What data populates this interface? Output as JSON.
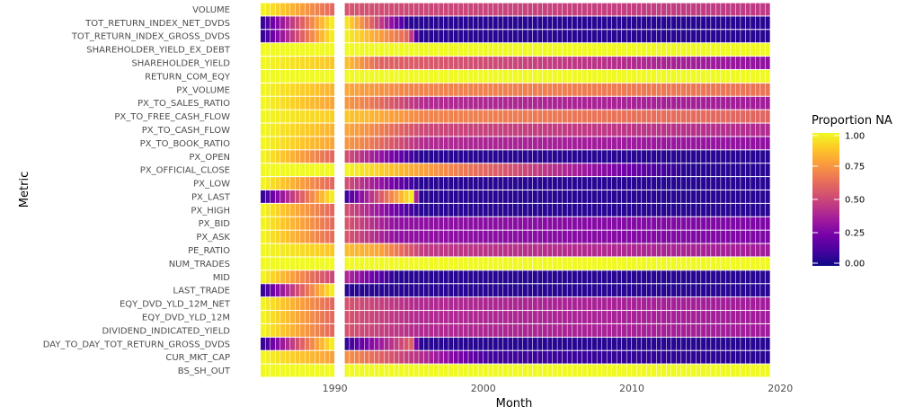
{
  "chart_data": {
    "type": "heatmap",
    "xlabel": "Month",
    "ylabel": "Metric",
    "xlim": [
      1985.0,
      2019.2
    ],
    "x_ticks": [
      "1990",
      "2000",
      "2010",
      "2020"
    ],
    "x_tick_values": [
      1990,
      2000,
      2010,
      2020
    ],
    "legend": {
      "title": "Proportion NA",
      "ticks": [
        "1.00",
        "0.75",
        "0.50",
        "0.25",
        "0.00"
      ],
      "tick_values": [
        1.0,
        0.75,
        0.5,
        0.25,
        0.0
      ],
      "colors": [
        "#0d0887",
        "#46039f",
        "#7201a8",
        "#9c179e",
        "#bd3786",
        "#d8576b",
        "#ed7953",
        "#fb9f3a",
        "#fdca26",
        "#f0f921"
      ],
      "placement": "right"
    },
    "gap": [
      1990.0,
      1990.6
    ],
    "metrics": [
      {
        "name": "VOLUME",
        "segments": [
          [
            1985.0,
            1.0
          ],
          [
            1990.6,
            0.55
          ],
          [
            1995.6,
            0.5
          ],
          [
            2019.2,
            0.45
          ]
        ]
      },
      {
        "name": "TOT_RETURN_INDEX_NET_DVDS",
        "segments": [
          [
            1985.0,
            0.05
          ],
          [
            1990.0,
            1.0
          ],
          [
            1990.6,
            1.0
          ],
          [
            1995.0,
            0.05
          ],
          [
            2019.2,
            0.05
          ]
        ]
      },
      {
        "name": "TOT_RETURN_INDEX_GROSS_DVDS",
        "segments": [
          [
            1985.0,
            0.05
          ],
          [
            1990.0,
            1.0
          ],
          [
            1990.6,
            1.0
          ],
          [
            1995.0,
            0.6
          ],
          [
            1995.6,
            0.05
          ],
          [
            2019.2,
            0.05
          ]
        ]
      },
      {
        "name": "SHAREHOLDER_YIELD_EX_DEBT",
        "segments": [
          [
            1985.0,
            1.0
          ],
          [
            2019.2,
            1.0
          ]
        ]
      },
      {
        "name": "SHAREHOLDER_YIELD",
        "segments": [
          [
            1985.0,
            1.0
          ],
          [
            1991.0,
            0.85
          ],
          [
            1993.0,
            0.6
          ],
          [
            2019.2,
            0.3
          ]
        ]
      },
      {
        "name": "RETURN_COM_EQY",
        "segments": [
          [
            1985.0,
            1.0
          ],
          [
            2019.2,
            1.0
          ]
        ]
      },
      {
        "name": "PX_VOLUME",
        "segments": [
          [
            1985.0,
            1.0
          ],
          [
            1990.6,
            0.8
          ],
          [
            1995.0,
            0.7
          ],
          [
            2019.2,
            0.65
          ]
        ]
      },
      {
        "name": "PX_TO_SALES_RATIO",
        "segments": [
          [
            1985.0,
            1.0
          ],
          [
            1992.0,
            0.7
          ],
          [
            1996.0,
            0.4
          ],
          [
            2019.2,
            0.35
          ]
        ]
      },
      {
        "name": "PX_TO_FREE_CASH_FLOW",
        "segments": [
          [
            1985.0,
            1.0
          ],
          [
            1992.0,
            0.85
          ],
          [
            1996.0,
            0.7
          ],
          [
            2019.2,
            0.6
          ]
        ]
      },
      {
        "name": "PX_TO_CASH_FLOW",
        "segments": [
          [
            1985.0,
            1.0
          ],
          [
            1992.0,
            0.75
          ],
          [
            1996.0,
            0.5
          ],
          [
            2019.2,
            0.4
          ]
        ]
      },
      {
        "name": "PX_TO_BOOK_RATIO",
        "segments": [
          [
            1985.0,
            1.0
          ],
          [
            1992.0,
            0.7
          ],
          [
            1996.0,
            0.4
          ],
          [
            2019.2,
            0.3
          ]
        ]
      },
      {
        "name": "PX_OPEN",
        "segments": [
          [
            1985.0,
            1.0
          ],
          [
            1990.6,
            0.55
          ],
          [
            1995.8,
            0.05
          ],
          [
            2019.2,
            0.05
          ]
        ]
      },
      {
        "name": "PX_OFFICIAL_CLOSE",
        "segments": [
          [
            1985.0,
            1.0
          ],
          [
            1990.6,
            1.0
          ],
          [
            2013.7,
            0.05
          ],
          [
            2019.2,
            0.05
          ]
        ]
      },
      {
        "name": "PX_LOW",
        "segments": [
          [
            1985.0,
            1.0
          ],
          [
            1990.6,
            0.55
          ],
          [
            1995.8,
            0.05
          ],
          [
            2019.2,
            0.05
          ]
        ]
      },
      {
        "name": "PX_LAST",
        "segments": [
          [
            1985.0,
            0.05
          ],
          [
            1990.0,
            1.0
          ],
          [
            1990.6,
            0.05
          ],
          [
            1995.3,
            1.0
          ],
          [
            1995.6,
            0.05
          ],
          [
            2019.2,
            0.05
          ]
        ]
      },
      {
        "name": "PX_HIGH",
        "segments": [
          [
            1985.0,
            1.0
          ],
          [
            1990.6,
            0.55
          ],
          [
            1995.8,
            0.05
          ],
          [
            2019.2,
            0.05
          ]
        ]
      },
      {
        "name": "PX_BID",
        "segments": [
          [
            1985.0,
            1.0
          ],
          [
            1994.1,
            0.3
          ],
          [
            2019.2,
            0.25
          ]
        ]
      },
      {
        "name": "PX_ASK",
        "segments": [
          [
            1985.0,
            1.0
          ],
          [
            1994.1,
            0.3
          ],
          [
            2019.2,
            0.25
          ]
        ]
      },
      {
        "name": "PE_RATIO",
        "segments": [
          [
            1985.0,
            1.0
          ],
          [
            1993.0,
            0.8
          ],
          [
            1996.0,
            0.45
          ],
          [
            2019.2,
            0.35
          ]
        ]
      },
      {
        "name": "NUM_TRADES",
        "segments": [
          [
            1985.0,
            1.0
          ],
          [
            2019.2,
            1.0
          ]
        ]
      },
      {
        "name": "MID",
        "segments": [
          [
            1985.0,
            1.0
          ],
          [
            1994.1,
            0.05
          ],
          [
            2019.2,
            0.05
          ]
        ]
      },
      {
        "name": "LAST_TRADE",
        "segments": [
          [
            1985.0,
            0.05
          ],
          [
            1990.0,
            1.0
          ],
          [
            1990.6,
            0.05
          ],
          [
            1995.6,
            0.05
          ],
          [
            2019.2,
            0.05
          ]
        ]
      },
      {
        "name": "EQY_DVD_YLD_12M_NET",
        "segments": [
          [
            1985.0,
            1.0
          ],
          [
            1990.6,
            0.55
          ],
          [
            1995.6,
            0.4
          ],
          [
            2019.2,
            0.35
          ]
        ]
      },
      {
        "name": "EQY_DVD_YLD_12M",
        "segments": [
          [
            1985.0,
            1.0
          ],
          [
            1990.6,
            0.55
          ],
          [
            1995.6,
            0.4
          ],
          [
            2019.2,
            0.35
          ]
        ]
      },
      {
        "name": "DIVIDEND_INDICATED_YIELD",
        "segments": [
          [
            1985.0,
            1.0
          ],
          [
            1990.6,
            0.55
          ],
          [
            1995.6,
            0.4
          ],
          [
            2019.2,
            0.35
          ]
        ]
      },
      {
        "name": "DAY_TO_DAY_TOT_RETURN_GROSS_DVDS",
        "segments": [
          [
            1985.0,
            0.05
          ],
          [
            1990.0,
            1.0
          ],
          [
            1990.6,
            0.05
          ],
          [
            1995.3,
            0.6
          ],
          [
            1995.6,
            0.05
          ],
          [
            2019.2,
            0.05
          ]
        ]
      },
      {
        "name": "CUR_MKT_CAP",
        "segments": [
          [
            1985.0,
            1.0
          ],
          [
            1991.5,
            0.7
          ],
          [
            2000.5,
            0.1
          ],
          [
            2019.2,
            0.05
          ]
        ]
      },
      {
        "name": "BS_SH_OUT",
        "segments": [
          [
            1985.0,
            1.0
          ],
          [
            2019.2,
            1.0
          ]
        ]
      }
    ]
  }
}
